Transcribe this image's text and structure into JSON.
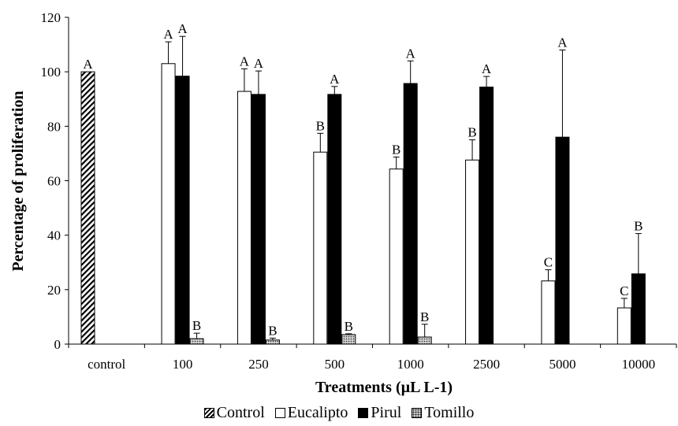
{
  "chart_data": {
    "type": "bar",
    "title": "",
    "xlabel": "Treatments (µL L-1)",
    "ylabel": "Percentage of proliferation",
    "ylim": [
      0,
      120
    ],
    "yticks": [
      "0",
      "20",
      "40",
      "60",
      "80",
      "100",
      "120"
    ],
    "grid": false,
    "legend_position": "bottom",
    "categories": [
      "control",
      "100",
      "250",
      "500",
      "1000",
      "2500",
      "5000",
      "10000"
    ],
    "series": [
      {
        "name": "Control",
        "pattern": "diagonal-hatch",
        "values": [
          100,
          null,
          null,
          null,
          null,
          null,
          null,
          null
        ],
        "errors": [
          0,
          null,
          null,
          null,
          null,
          null,
          null,
          null
        ],
        "letters": [
          "A",
          "",
          "",
          "",
          "",
          "",
          "",
          ""
        ]
      },
      {
        "name": "Eucalipto",
        "color": "#ffffff",
        "values": [
          null,
          103,
          92.8,
          70.5,
          64.3,
          67.6,
          23.2,
          13.3
        ],
        "errors": [
          null,
          8,
          8.3,
          6.9,
          4.4,
          7.4,
          4.1,
          3.5
        ],
        "letters": [
          "",
          "A",
          "A",
          "B",
          "B",
          "B",
          "C",
          "C"
        ]
      },
      {
        "name": "Pirul",
        "color": "#000000",
        "values": [
          null,
          98.4,
          91.7,
          91.7,
          95.7,
          94.4,
          76,
          25.8
        ],
        "errors": [
          null,
          14.6,
          8.6,
          2.9,
          8.3,
          3.9,
          32,
          14.8
        ],
        "letters": [
          "",
          "A",
          "A",
          "A",
          "A",
          "A",
          "A",
          "B"
        ]
      },
      {
        "name": "Tomillo",
        "pattern": "dotted-gray",
        "values": [
          null,
          2.0,
          1.5,
          3.5,
          2.6,
          0,
          0,
          0
        ],
        "errors": [
          null,
          2.0,
          0.7,
          0.3,
          4.7,
          0,
          0,
          0
        ],
        "letters": [
          "",
          "B",
          "B",
          "B",
          "B",
          "",
          "",
          ""
        ]
      }
    ]
  }
}
